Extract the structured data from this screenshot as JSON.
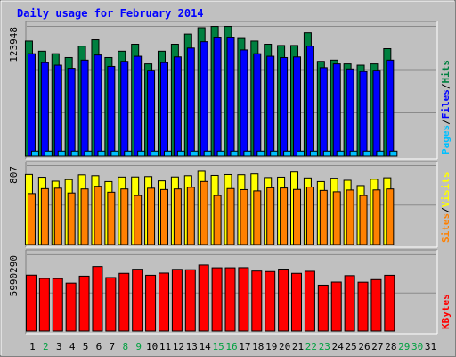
{
  "chart_data": {
    "type": "bar",
    "title": "Daily usage for February 2014",
    "x": [
      "1",
      "2",
      "3",
      "4",
      "5",
      "6",
      "7",
      "8",
      "9",
      "10",
      "11",
      "12",
      "13",
      "14",
      "15",
      "16",
      "17",
      "18",
      "19",
      "20",
      "21",
      "22",
      "23",
      "24",
      "25",
      "26",
      "27",
      "28",
      "29",
      "30",
      "31"
    ],
    "x_weekend": [
      false,
      true,
      false,
      false,
      false,
      false,
      false,
      true,
      true,
      false,
      false,
      false,
      false,
      false,
      true,
      true,
      false,
      false,
      false,
      false,
      false,
      true,
      true,
      false,
      false,
      false,
      false,
      false,
      true,
      true,
      false
    ],
    "days_with_data": 28,
    "panels": [
      {
        "name": "hits-files-pages",
        "ymax_label": "123948",
        "ylim": [
          0,
          123948
        ],
        "legend": [
          {
            "text": "Pages",
            "color": "#00c0ff"
          },
          {
            "text": "/",
            "color": "#000000"
          },
          {
            "text": "Files",
            "color": "#0000ff"
          },
          {
            "text": "/",
            "color": "#000000"
          },
          {
            "text": "Hits",
            "color": "#008040"
          }
        ],
        "series": [
          {
            "name": "Hits",
            "color": "#008040",
            "values": [
              109570,
              99890,
              97470,
              93830,
              104720,
              110770,
              93830,
              99890,
              106540,
              87780,
              99890,
              106540,
              116220,
              122270,
              123480,
              123480,
              111980,
              109570,
              106540,
              105330,
              105330,
              117440,
              90200,
              91410,
              87780,
              86570,
              87780,
              102300
            ]
          },
          {
            "name": "Files",
            "color": "#0000ff",
            "values": [
              97470,
              88990,
              86570,
              83540,
              91410,
              96250,
              85360,
              90200,
              95040,
              81730,
              89000,
              94430,
              102900,
              108960,
              112590,
              112590,
              101090,
              97470,
              95040,
              93830,
              94430,
              104710,
              84150,
              87780,
              82940,
              80520,
              81730,
              91410
            ]
          },
          {
            "name": "Pages",
            "color": "#00c0ff",
            "values": [
              4840,
              4840,
              4840,
              4840,
              4840,
              4840,
              4840,
              4840,
              4840,
              4840,
              4840,
              4840,
              4840,
              4840,
              4840,
              4840,
              4840,
              4840,
              4840,
              4840,
              4840,
              4840,
              4840,
              4840,
              4840,
              4840,
              4840,
              4840
            ]
          }
        ]
      },
      {
        "name": "visits-sites",
        "ymax_label": "807",
        "ylim": [
          0,
          807
        ],
        "legend": [
          {
            "text": "Sites",
            "color": "#ff8000"
          },
          {
            "text": "/",
            "color": "#000000"
          },
          {
            "text": "Visits",
            "color": "#ffff00"
          }
        ],
        "series": [
          {
            "name": "Visits",
            "color": "#ffff00",
            "values": [
              713,
              684,
              644,
              660,
              709,
              700,
              640,
              686,
              687,
              691,
              647,
              687,
              700,
              744,
              703,
              712,
              710,
              719,
              681,
              685,
              737,
              677,
              640,
              674,
              653,
              599,
              664,
              679
            ]
          },
          {
            "name": "Sites",
            "color": "#ff8000",
            "values": [
              518,
              568,
              573,
              524,
              565,
              592,
              532,
              565,
              498,
              573,
              559,
              565,
              582,
              641,
              498,
              569,
              558,
              545,
              577,
              575,
              560,
              584,
              550,
              536,
              554,
              498,
              555,
              565
            ]
          }
        ]
      },
      {
        "name": "kbytes",
        "ymax_label": "5990290",
        "ylim": [
          0,
          5990290
        ],
        "legend": [
          {
            "text": "KBytes",
            "color": "#ff0000"
          }
        ],
        "series": [
          {
            "name": "KBytes",
            "color": "#ff0000",
            "values": [
              4370000,
              4110000,
              4100000,
              3750000,
              4290000,
              5040000,
              4180000,
              4510000,
              4830000,
              4360000,
              4530000,
              4820000,
              4790000,
              5160000,
              4940000,
              4940000,
              4950000,
              4690000,
              4650000,
              4840000,
              4510000,
              4670000,
              3590000,
              3830000,
              4330000,
              3820000,
              4020000,
              4360000
            ]
          }
        ]
      }
    ],
    "grid": true,
    "legend_position": "right-vertical"
  }
}
